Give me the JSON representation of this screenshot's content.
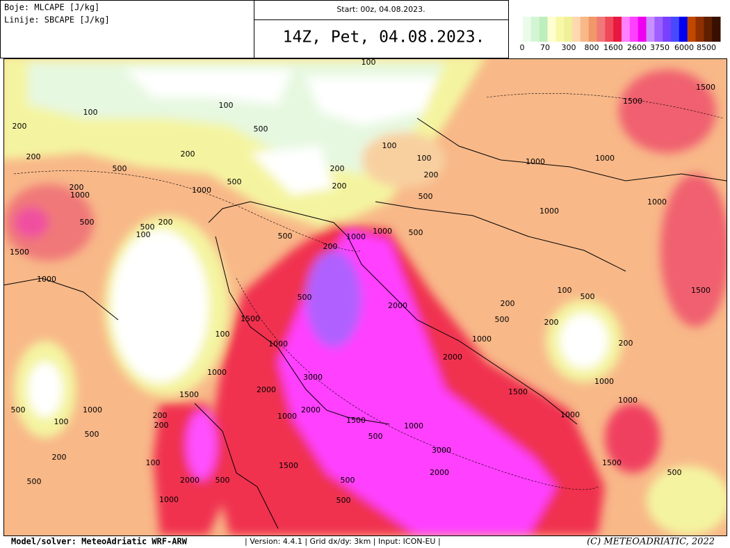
{
  "header": {
    "colors_label": "Boje: MLCAPE [J/kg]",
    "lines_label": "Linije: SBCAPE [J/kg]",
    "start": "Start: 00z, 04.08.2023.",
    "valid": "14Z, Pet, 04.08.2023."
  },
  "legend": {
    "labels": [
      0,
      70,
      300,
      800,
      1600,
      2600,
      3750,
      6000,
      8500
    ],
    "colors": [
      "#eafbea",
      "#d4f5d4",
      "#bdeebd",
      "#ffffd0",
      "#f8f8a8",
      "#f0f098",
      "#ffd8b0",
      "#f8b888",
      "#f09868",
      "#f07878",
      "#f04858",
      "#e81840",
      "#ff80ff",
      "#ff40ff",
      "#f000f0",
      "#c890ff",
      "#a060ff",
      "#7840ff",
      "#4848ff",
      "#0000f0",
      "#c04800",
      "#903000",
      "#602000",
      "#381000"
    ]
  },
  "map": {
    "contour_labels": [
      100,
      1500,
      1500,
      100,
      200,
      500,
      100,
      100,
      200,
      100,
      200,
      500,
      200,
      1000,
      1000,
      200,
      200,
      500,
      1000,
      200,
      1000,
      500,
      1000,
      500,
      500,
      200,
      100,
      1000,
      1000,
      500,
      500,
      1000,
      200,
      1500,
      1000,
      2000,
      500,
      200,
      100,
      500,
      1500,
      500,
      200,
      1500,
      100,
      1000,
      1000,
      2000,
      200,
      1000,
      3000,
      2000,
      1500,
      1500,
      1000,
      1000,
      200,
      500,
      100,
      200,
      1000,
      2000,
      1500,
      1000,
      1000,
      1000,
      500,
      500,
      3000,
      100,
      2000,
      1500,
      1500,
      200,
      500,
      500,
      2000,
      500,
      500,
      1000,
      500
    ]
  },
  "footer": {
    "model": "Model/solver: MeteoAdriatic WRF-ARW",
    "info": "| Version: 4.4.1 | Grid dx/dy: 3km | Input: ICON-EU |",
    "copyright": "(C) METEOADRIATIC, 2022"
  }
}
